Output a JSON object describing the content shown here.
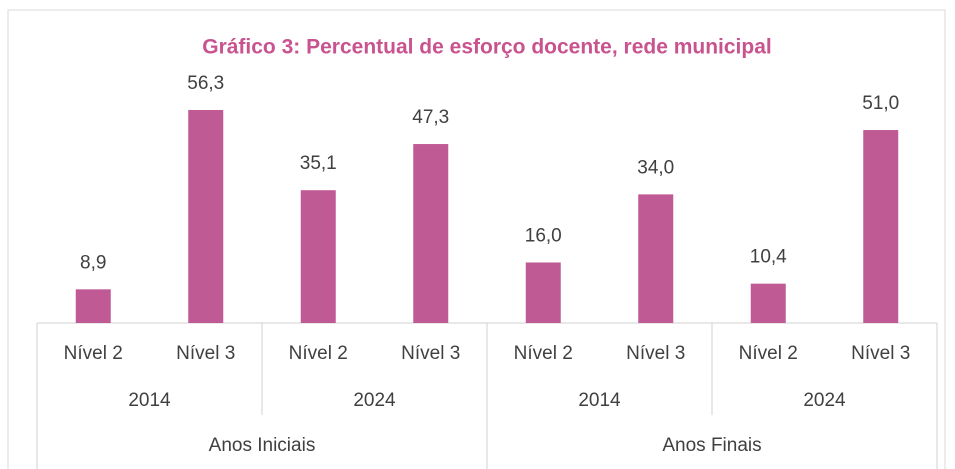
{
  "chart_data": {
    "type": "bar",
    "title": "Gráfico 3: Percentual de esforço docente, rede municipal",
    "categories": [
      "Nível 2",
      "Nível 3",
      "Nível 2",
      "Nível 3",
      "Nível 2",
      "Nível 3",
      "Nível 2",
      "Nível 3"
    ],
    "category_groups": [
      "2014",
      "2024",
      "2014",
      "2024"
    ],
    "outer_groups": [
      "Anos Iniciais",
      "Anos Finais"
    ],
    "values": [
      8.9,
      56.3,
      35.1,
      47.3,
      16.0,
      34.0,
      10.4,
      51.0
    ],
    "value_labels": [
      "8,9",
      "56,3",
      "35,1",
      "47,3",
      "16,0",
      "34,0",
      "10,4",
      "51,0"
    ],
    "color": "#c05a95"
  }
}
